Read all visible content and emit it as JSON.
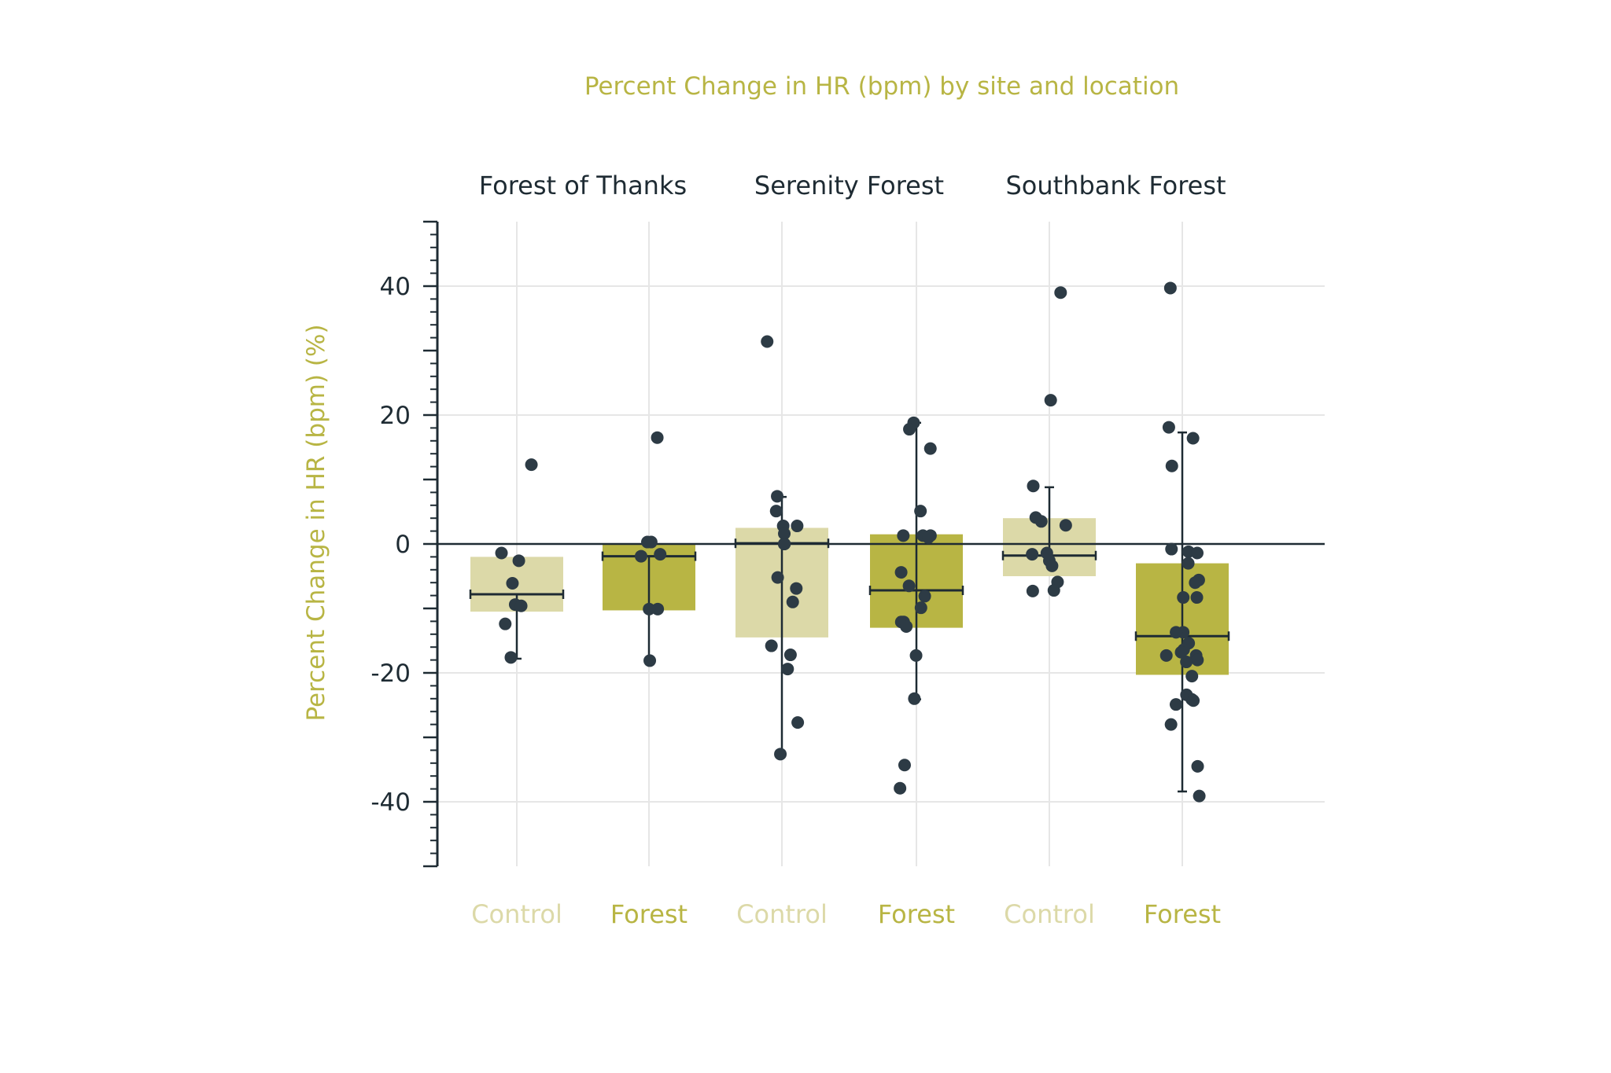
{
  "chart_data": {
    "type": "bar",
    "title": "Percent Change in HR (bpm) by site and location",
    "xlabel": "",
    "ylabel": "Percent Change in HR (bpm) (%)",
    "ylim": [
      -50,
      50
    ],
    "yticks": [
      40,
      20,
      0,
      -20,
      -40
    ],
    "grid": true,
    "sites": [
      "Forest of Thanks",
      "Serenity Forest",
      "Southbank Forest"
    ],
    "categories": [
      "Control",
      "Forest",
      "Control",
      "Forest",
      "Control",
      "Forest"
    ],
    "colors": {
      "control": "#dcd9a8",
      "forest": "#b8b544",
      "control_text": "#dcd9a8",
      "forest_text": "#b8b544",
      "title": "#b8b544",
      "points": "#2d3b45",
      "lines": "#1e2b33",
      "grid": "#e6e6e6"
    },
    "groups": [
      {
        "site": "Forest of Thanks",
        "location": "Control",
        "bar_top": -2,
        "bar_bottom": -10.5,
        "mean": -7.8,
        "err_low": -17.8,
        "err_high": -9.6,
        "points": [
          12.3,
          -1.4,
          -2.6,
          -6.1,
          -9.4,
          -9.6,
          -12.4,
          -17.6
        ]
      },
      {
        "site": "Forest of Thanks",
        "location": "Forest",
        "bar_top": 0,
        "bar_bottom": -10.3,
        "mean": -1.9,
        "err_low": -18.2,
        "err_high": -1.9,
        "points": [
          16.5,
          0.3,
          0.3,
          -1.9,
          -1.6,
          -10.1,
          -10.1,
          -18.1
        ]
      },
      {
        "site": "Serenity Forest",
        "location": "Control",
        "bar_top": 2.5,
        "bar_bottom": -14.5,
        "mean": 0.1,
        "err_low": -32.6,
        "err_high": 7.3,
        "points": [
          31.4,
          7.4,
          5.1,
          2.8,
          2.8,
          1.6,
          0.0,
          0.0,
          0.0,
          -5.2,
          -6.9,
          -9.0,
          -15.8,
          -17.2,
          -19.4,
          -27.7,
          -32.6
        ]
      },
      {
        "site": "Serenity Forest",
        "location": "Forest",
        "bar_top": 1.5,
        "bar_bottom": -13,
        "mean": -7.2,
        "err_low": -24.1,
        "err_high": 18.8,
        "points": [
          18.8,
          17.8,
          14.8,
          5.1,
          1.3,
          1.3,
          1.3,
          1.0,
          -4.4,
          -6.5,
          -8.1,
          -9.9,
          -12.1,
          -12.1,
          -12.8,
          -17.3,
          -24.0,
          -34.3,
          -37.9
        ]
      },
      {
        "site": "Southbank Forest",
        "location": "Control",
        "bar_top": 4,
        "bar_bottom": -5,
        "mean": -1.8,
        "err_low": -1.8,
        "err_high": 8.8,
        "points": [
          39.0,
          22.3,
          9.0,
          4.1,
          3.5,
          2.9,
          -1.4,
          -1.6,
          -2.6,
          -3.4,
          -5.9,
          -7.2,
          -7.3
        ]
      },
      {
        "site": "Southbank Forest",
        "location": "Forest",
        "bar_top": -3,
        "bar_bottom": -20.3,
        "mean": -14.3,
        "err_low": -38.4,
        "err_high": 17.3,
        "points": [
          39.7,
          18.1,
          16.4,
          12.1,
          -0.8,
          -1.2,
          -1.4,
          -3.0,
          -5.6,
          -6.0,
          -8.3,
          -8.3,
          -13.7,
          -13.7,
          -15.4,
          -16.4,
          -16.8,
          -17.3,
          -17.3,
          -18.0,
          -18.3,
          -20.5,
          -23.4,
          -24.1,
          -24.3,
          -24.9,
          -28.0,
          -34.5,
          -39.1
        ]
      }
    ]
  }
}
